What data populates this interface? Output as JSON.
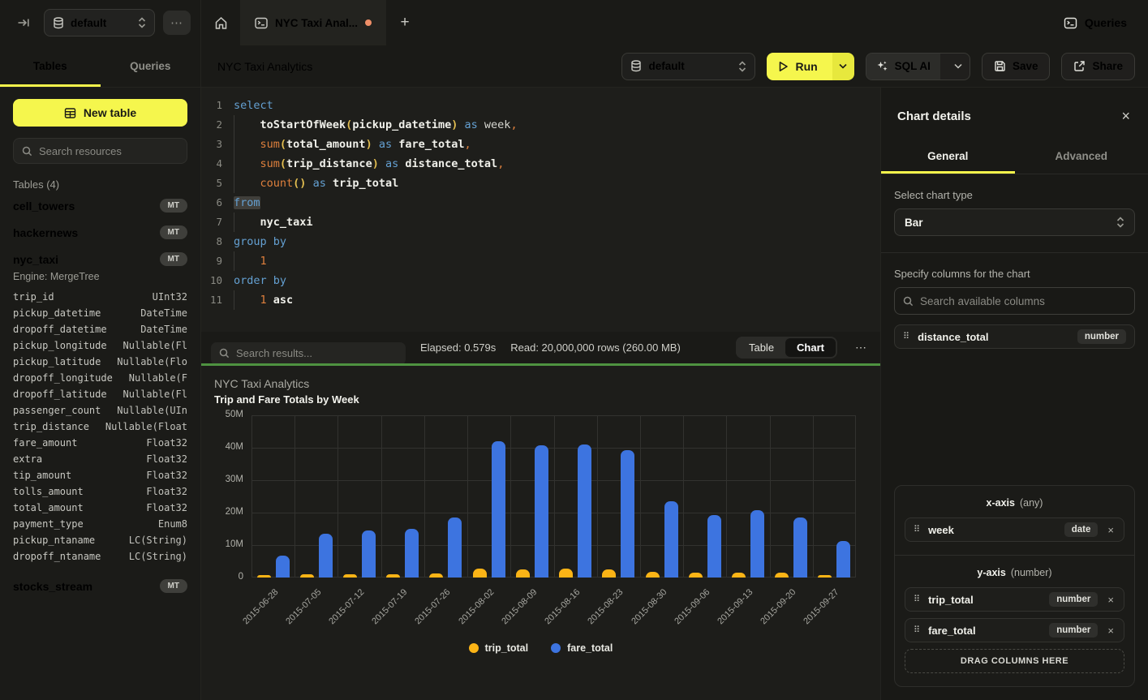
{
  "topbar": {
    "database_selector": "default",
    "more_glyph": "⋯",
    "tab_title": "NYC Taxi Anal...",
    "plus_glyph": "+",
    "queries_label": "Queries"
  },
  "sidebar": {
    "tabs": [
      {
        "label": "Tables",
        "active": true
      },
      {
        "label": "Queries",
        "active": false
      }
    ],
    "new_table_label": "New table",
    "search_placeholder": "Search resources",
    "tables_header": "Tables (4)",
    "tables": [
      {
        "name": "cell_towers",
        "badge": "MT"
      },
      {
        "name": "hackernews",
        "badge": "MT"
      },
      {
        "name": "nyc_taxi",
        "badge": "MT",
        "engine": "Engine: MergeTree",
        "columns": [
          [
            "trip_id",
            "UInt32"
          ],
          [
            "pickup_datetime",
            "DateTime"
          ],
          [
            "dropoff_datetime",
            "DateTime"
          ],
          [
            "pickup_longitude",
            "Nullable(Fl"
          ],
          [
            "pickup_latitude",
            "Nullable(Flo"
          ],
          [
            "dropoff_longitude",
            "Nullable(F"
          ],
          [
            "dropoff_latitude",
            "Nullable(Fl"
          ],
          [
            "passenger_count",
            "Nullable(UIn"
          ],
          [
            "trip_distance",
            "Nullable(Float"
          ],
          [
            "fare_amount",
            "Float32"
          ],
          [
            "extra",
            "Float32"
          ],
          [
            "tip_amount",
            "Float32"
          ],
          [
            "tolls_amount",
            "Float32"
          ],
          [
            "total_amount",
            "Float32"
          ],
          [
            "payment_type",
            "Enum8"
          ],
          [
            "pickup_ntaname",
            "LC(String)"
          ],
          [
            "dropoff_ntaname",
            "LC(String)"
          ]
        ]
      },
      {
        "name": "stocks_stream",
        "badge": "MT"
      }
    ]
  },
  "toolbar": {
    "title": "NYC Taxi Analytics",
    "database_selector": "default",
    "run_label": "Run",
    "sql_ai_label": "SQL AI",
    "save_label": "Save",
    "share_label": "Share"
  },
  "editor": {
    "lines": [
      {
        "n": "1",
        "t": [
          [
            "select",
            "k"
          ]
        ]
      },
      {
        "n": "2",
        "t": [
          [
            "",
            "g"
          ],
          [
            "toStartOfWeek",
            "i"
          ],
          [
            "(",
            "p"
          ],
          [
            "pickup_datetime",
            "i"
          ],
          [
            ")",
            "p"
          ],
          [
            " ",
            "w"
          ],
          [
            "as",
            "k"
          ],
          [
            " ",
            "w"
          ],
          [
            "week",
            "w"
          ],
          [
            ",",
            "c"
          ]
        ]
      },
      {
        "n": "3",
        "t": [
          [
            "",
            "g"
          ],
          [
            "sum",
            "f"
          ],
          [
            "(",
            "p"
          ],
          [
            "total_amount",
            "i"
          ],
          [
            ")",
            "p"
          ],
          [
            " ",
            "w"
          ],
          [
            "as",
            "k"
          ],
          [
            " ",
            "w"
          ],
          [
            "fare_total",
            "i"
          ],
          [
            ",",
            "c"
          ]
        ]
      },
      {
        "n": "4",
        "t": [
          [
            "",
            "g"
          ],
          [
            "sum",
            "f"
          ],
          [
            "(",
            "p"
          ],
          [
            "trip_distance",
            "i"
          ],
          [
            ")",
            "p"
          ],
          [
            " ",
            "w"
          ],
          [
            "as",
            "k"
          ],
          [
            " ",
            "w"
          ],
          [
            "distance_total",
            "i"
          ],
          [
            ",",
            "c"
          ]
        ]
      },
      {
        "n": "5",
        "t": [
          [
            "",
            "g"
          ],
          [
            "count",
            "f"
          ],
          [
            "(",
            "p"
          ],
          [
            ")",
            "p"
          ],
          [
            " ",
            "w"
          ],
          [
            "as",
            "k"
          ],
          [
            " ",
            "w"
          ],
          [
            "trip_total",
            "i"
          ]
        ]
      },
      {
        "n": "6",
        "t": [
          [
            "from",
            "khl"
          ]
        ]
      },
      {
        "n": "7",
        "t": [
          [
            "",
            "g"
          ],
          [
            "nyc_taxi",
            "i"
          ]
        ]
      },
      {
        "n": "8",
        "t": [
          [
            "group by",
            "k"
          ]
        ]
      },
      {
        "n": "9",
        "t": [
          [
            "",
            "g"
          ],
          [
            "1",
            "n"
          ]
        ]
      },
      {
        "n": "10",
        "t": [
          [
            "order by",
            "k"
          ]
        ]
      },
      {
        "n": "11",
        "t": [
          [
            "",
            "g"
          ],
          [
            "1",
            "n"
          ],
          [
            " ",
            "w"
          ],
          [
            "asc",
            "i"
          ]
        ]
      }
    ]
  },
  "results_bar": {
    "search_placeholder": "Search results...",
    "elapsed": "Elapsed: 0.579s",
    "read": "Read: 20,000,000 rows (260.00 MB)",
    "views": [
      "Table",
      "Chart"
    ],
    "active_view": "Chart",
    "more_glyph": "⋯"
  },
  "chart_data": {
    "type": "bar",
    "title": "NYC Taxi Analytics",
    "subtitle": "Trip and Fare Totals by Week",
    "categories": [
      "2015-06-28",
      "2015-07-05",
      "2015-07-12",
      "2015-07-19",
      "2015-07-26",
      "2015-08-02",
      "2015-08-09",
      "2015-08-16",
      "2015-08-23",
      "2015-08-30",
      "2015-09-06",
      "2015-09-13",
      "2015-09-20",
      "2015-09-27"
    ],
    "series": [
      {
        "name": "trip_total",
        "color": "#fbb416",
        "values": [
          500000,
          900000,
          1000000,
          1000000,
          1200000,
          2800000,
          2600000,
          2800000,
          2500000,
          1700000,
          1500000,
          1500000,
          1500000,
          800000
        ]
      },
      {
        "name": "fare_total",
        "color": "#3d74e0",
        "values": [
          6800000,
          13500000,
          14500000,
          15000000,
          18600000,
          42000000,
          40700000,
          41100000,
          39300000,
          23500000,
          19300000,
          20700000,
          18600000,
          11300000
        ]
      }
    ],
    "ylim": [
      0,
      50000000
    ],
    "y_tick_labels": [
      "0",
      "10M",
      "20M",
      "30M",
      "40M",
      "50M"
    ],
    "grid": true,
    "legend_position": "bottom"
  },
  "chart_details": {
    "title": "Chart details",
    "close_glyph": "×",
    "tabs": [
      {
        "label": "General",
        "active": true
      },
      {
        "label": "Advanced",
        "active": false
      }
    ],
    "chart_type_label": "Select chart type",
    "chart_type_value": "Bar",
    "columns_label": "Specify columns for the chart",
    "search_placeholder": "Search available columns",
    "available_columns": [
      {
        "name": "distance_total",
        "type": "number"
      }
    ],
    "x_axis": {
      "label": "x-axis",
      "hint": "(any)",
      "items": [
        {
          "name": "week",
          "type": "date"
        }
      ]
    },
    "y_axis": {
      "label": "y-axis",
      "hint": "(number)",
      "items": [
        {
          "name": "trip_total",
          "type": "number"
        },
        {
          "name": "fare_total",
          "type": "number"
        }
      ]
    },
    "drop_zone_label": "DRAG COLUMNS HERE",
    "drag_handle_glyph": "⠿",
    "remove_glyph": "×"
  },
  "colors": {
    "accent_yellow": "#f5f64b",
    "run_button": "#f5f64d",
    "status_green_divider": "#4e9240",
    "unsaved_dot": "#ef8f68",
    "series_trip_total": "#fbb416",
    "series_fare_total": "#3d74e0"
  }
}
